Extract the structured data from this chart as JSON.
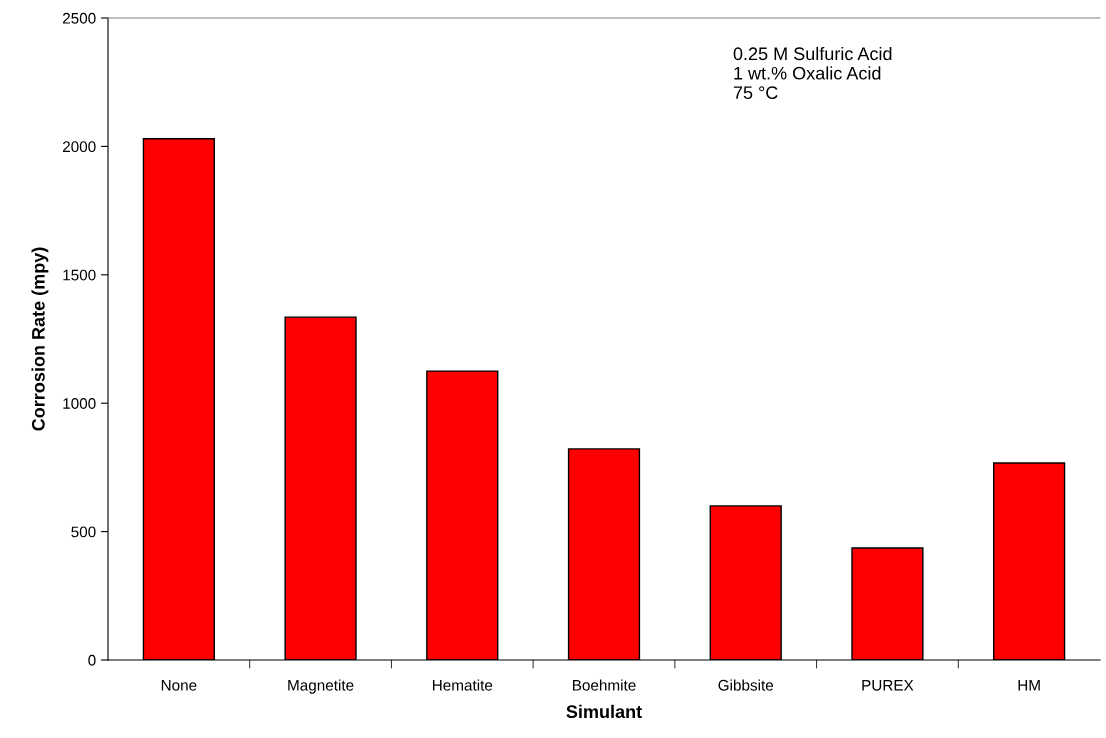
{
  "chart_data": {
    "type": "bar",
    "xlabel": "Simulant",
    "ylabel": "Corrosion Rate (mpy)",
    "categories": [
      "None",
      "Magnetite",
      "Hematite",
      "Boehmite",
      "Gibbsite",
      "PUREX",
      "HM"
    ],
    "values": [
      2030,
      1335,
      1125,
      822,
      600,
      436,
      767
    ],
    "color": "#ff0000",
    "ylim": [
      0,
      2500
    ],
    "yticks": [
      0,
      500,
      1000,
      1500,
      2000,
      2500
    ],
    "grid": false,
    "legend": false,
    "annotations": [
      "0.25 M Sulfuric Acid\n1 wt.% Oxalic Acid\n75 °C"
    ]
  }
}
